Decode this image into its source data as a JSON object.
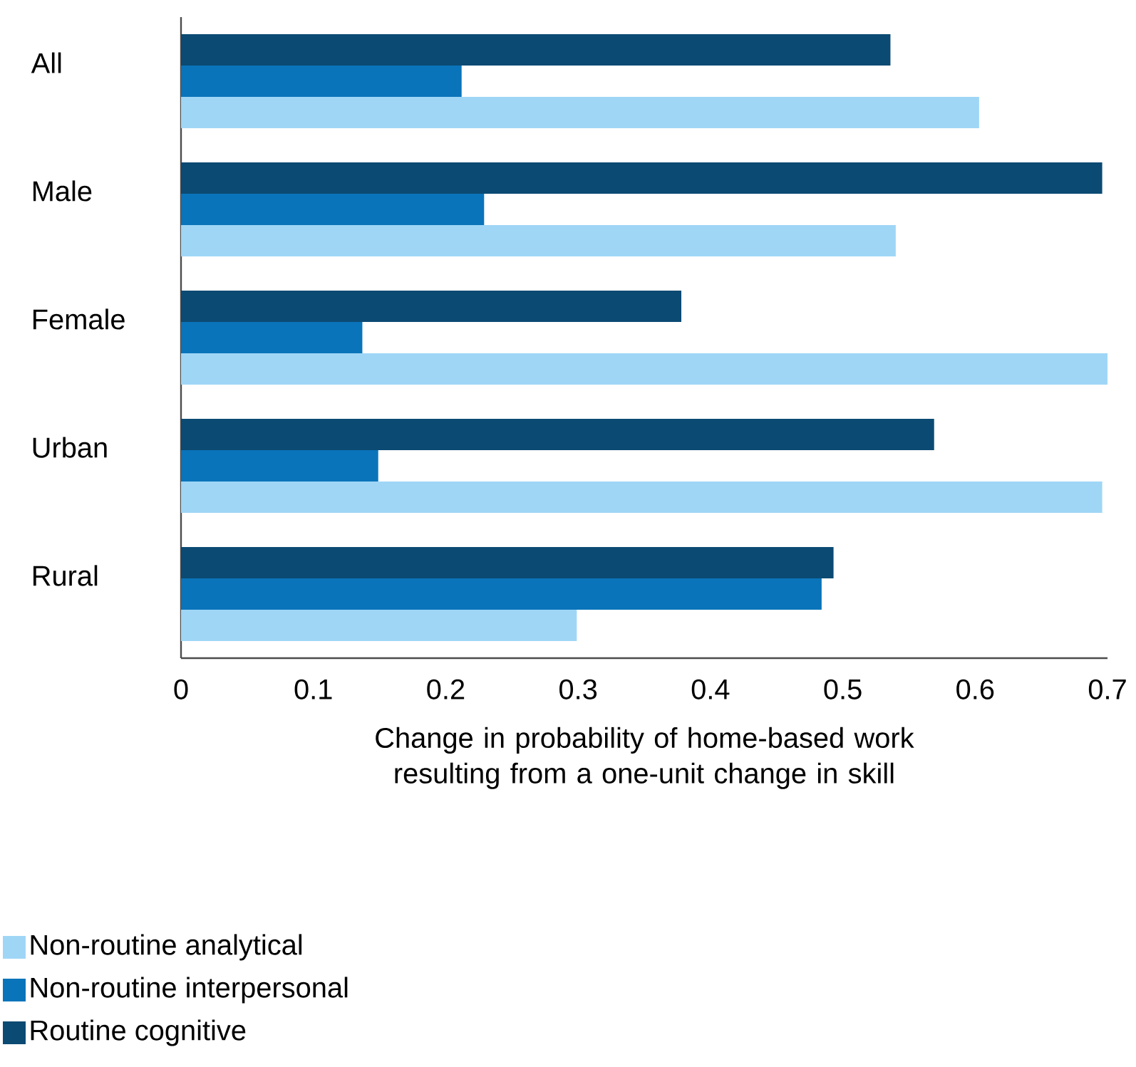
{
  "chart_data": {
    "type": "bar",
    "orientation": "horizontal",
    "xlabel": "Change in probability of home-based work resulting from a one-unit change in skill",
    "categories": [
      "All",
      "Male",
      "Female",
      "Urban",
      "Rural"
    ],
    "series": [
      {
        "name": "Non-routine analytical",
        "color": "#9fd6f6",
        "values": [
          0.603,
          0.54,
          0.7,
          0.696,
          0.299
        ]
      },
      {
        "name": "Non-routine interpersonal",
        "color": "#0a74ba",
        "values": [
          0.212,
          0.229,
          0.137,
          0.149,
          0.484
        ]
      },
      {
        "name": "Routine cognitive",
        "color": "#0b4a73",
        "values": [
          0.536,
          0.696,
          0.378,
          0.569,
          0.493
        ]
      }
    ],
    "xlim": [
      0,
      0.7
    ],
    "xticks": [
      0,
      0.1,
      0.2,
      0.3,
      0.4,
      0.5,
      0.6,
      0.7
    ],
    "grid": false,
    "legend": "bottom left"
  }
}
